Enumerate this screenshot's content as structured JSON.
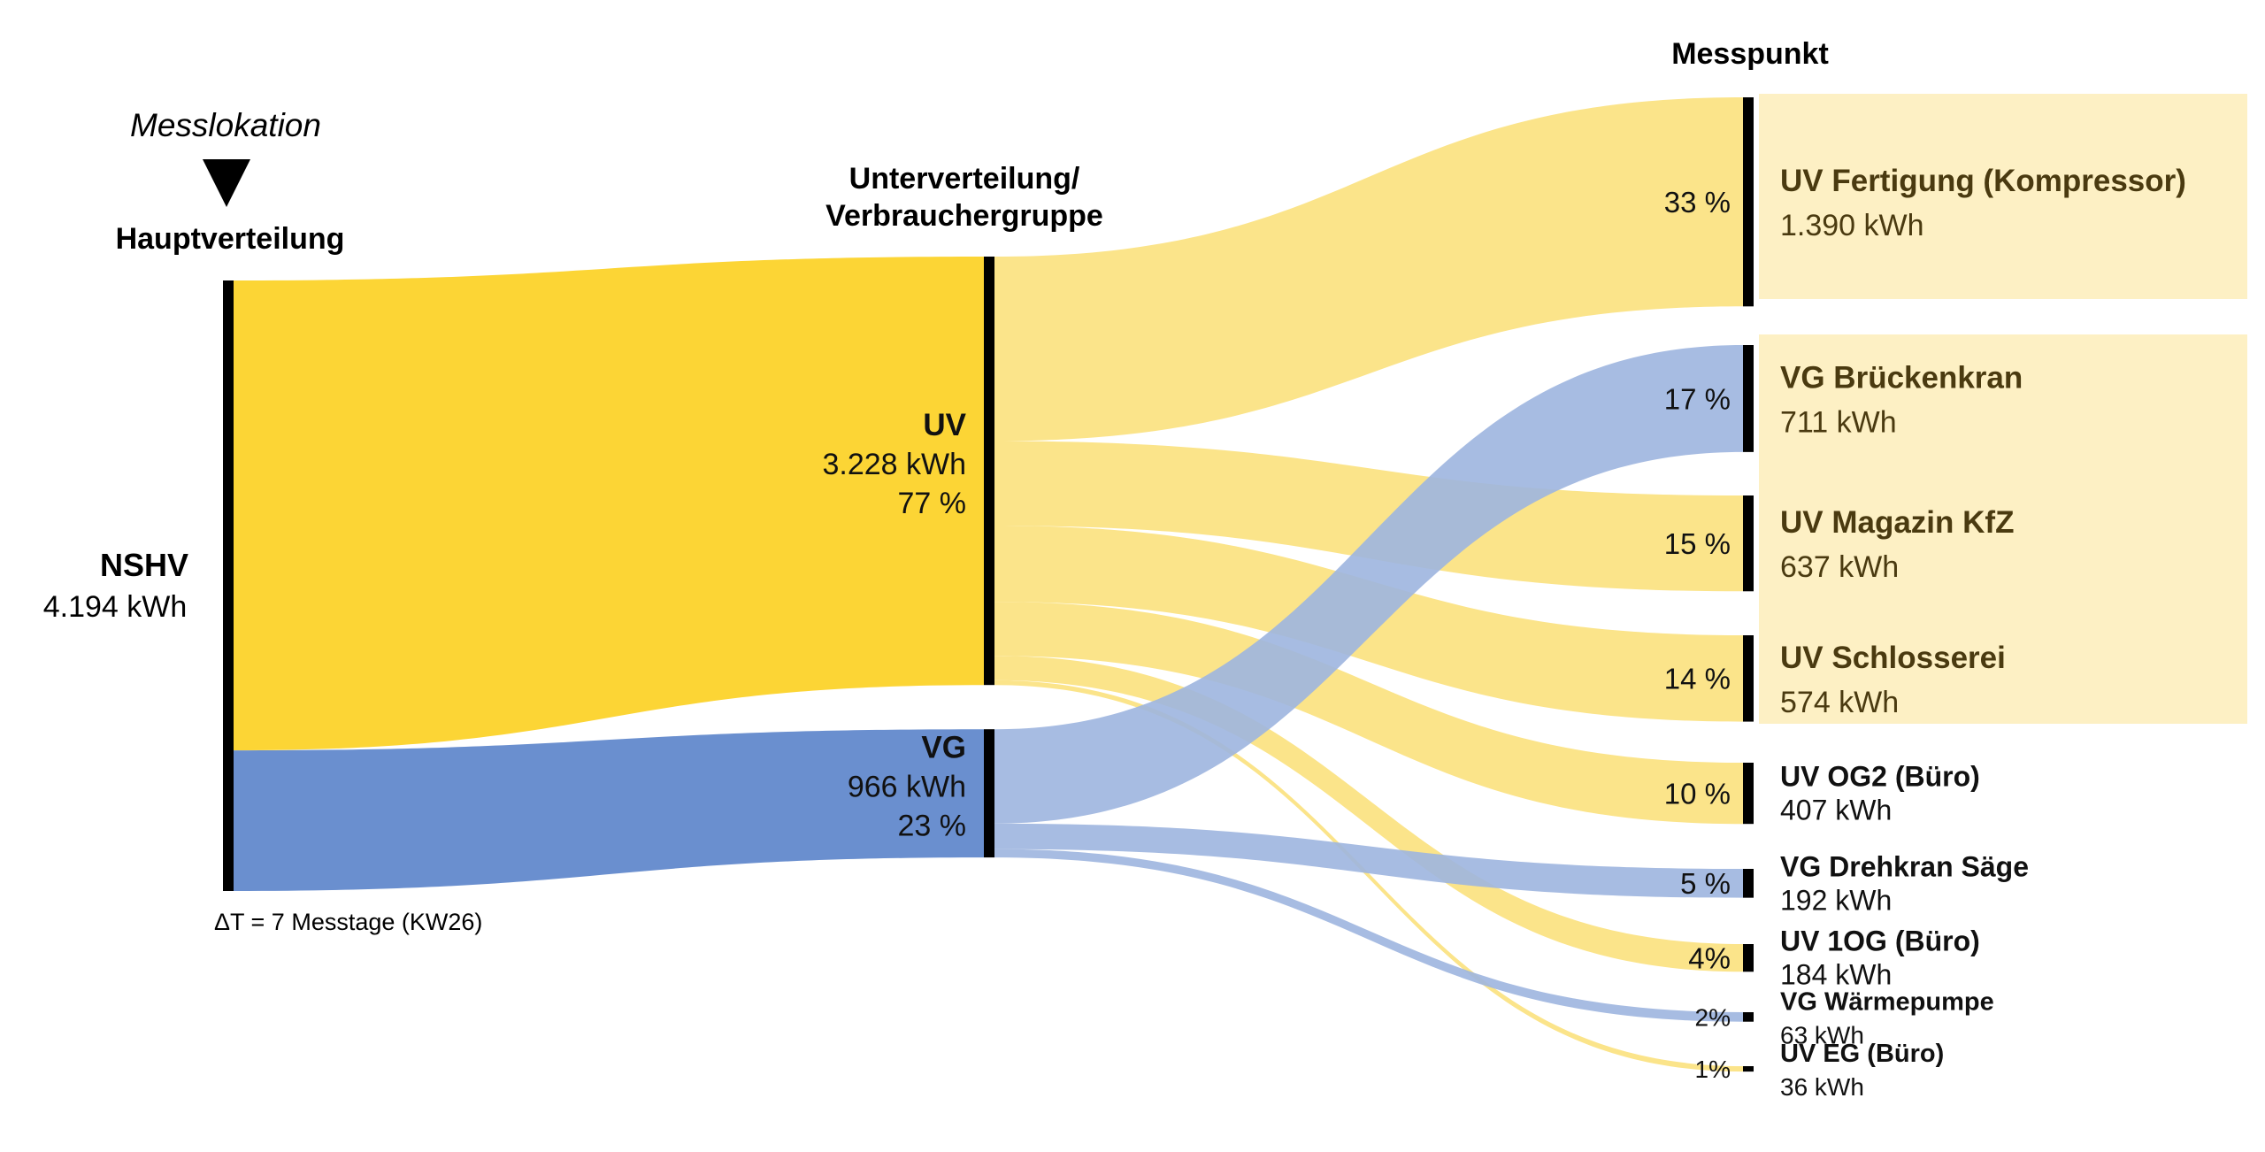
{
  "headers": {
    "messlokation": "Messlokation",
    "hauptverteilung": "Hauptverteilung",
    "unterverteilung_line1": "Unterverteilung/",
    "unterverteilung_line2": "Verbrauchergruppe",
    "messpunkt": "Messpunkt"
  },
  "footnote": "ΔT = 7 Messtage (KW26)",
  "colors": {
    "uv": "#fcd535",
    "uv_light": "#fbe48a",
    "vg": "#6a8fcf",
    "vg_light": "#9db5df",
    "label_box": "#fdf0c4",
    "bar": "#000000",
    "text_dark": "#4a3a10"
  },
  "source": {
    "name": "NSHV",
    "value": "4.194 kWh",
    "kwh": 4194
  },
  "groups": [
    {
      "id": "uv",
      "name": "UV",
      "value": "3.228 kWh",
      "pct": "77 %",
      "kwh": 3228
    },
    {
      "id": "vg",
      "name": "VG",
      "value": "966 kWh",
      "pct": "23 %",
      "kwh": 966
    }
  ],
  "points": [
    {
      "name": "UV Fertigung (Kompressor)",
      "value": "1.390 kWh",
      "pct": "33 %",
      "group": "uv",
      "kwh": 1390
    },
    {
      "name": "VG Brückenkran",
      "value": "711 kWh",
      "pct": "17 %",
      "group": "vg",
      "kwh": 711
    },
    {
      "name": "UV Magazin KfZ",
      "value": "637 kWh",
      "pct": "15 %",
      "group": "uv",
      "kwh": 637
    },
    {
      "name": "UV Schlosserei",
      "value": "574 kWh",
      "pct": "14 %",
      "group": "uv",
      "kwh": 574
    },
    {
      "name": "UV OG2 (Büro)",
      "value": "407 kWh",
      "pct": "10 %",
      "group": "uv",
      "kwh": 407
    },
    {
      "name": "VG Drehkran Säge",
      "value": "192 kWh",
      "pct": "5 %",
      "group": "vg",
      "kwh": 192
    },
    {
      "name": "UV 1OG (Büro)",
      "value": "184 kWh",
      "pct": "4%",
      "group": "uv",
      "kwh": 184
    },
    {
      "name": "VG Wärmepumpe",
      "value": "63 kWh",
      "pct": "2%",
      "group": "vg",
      "kwh": 63
    },
    {
      "name": "UV EG (Büro)",
      "value": "36 kWh",
      "pct": "1%",
      "group": "uv",
      "kwh": 36
    }
  ]
}
